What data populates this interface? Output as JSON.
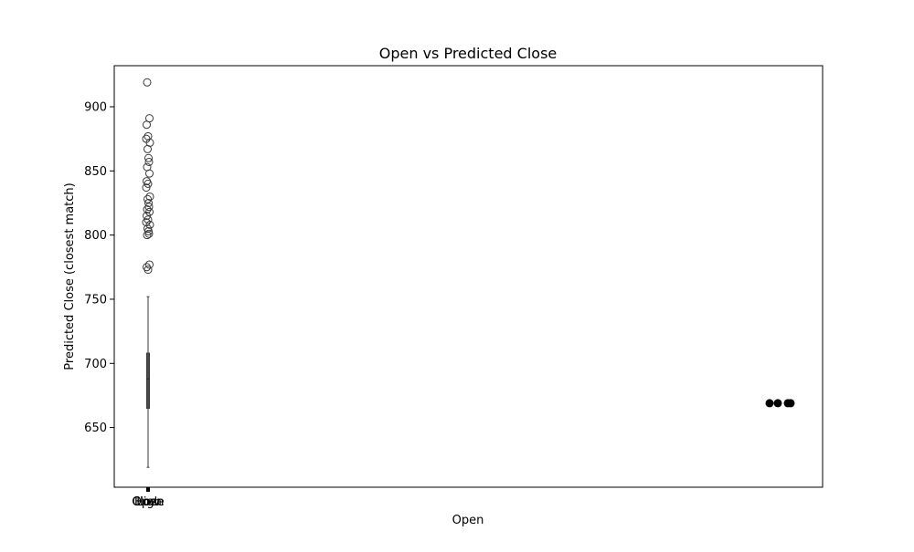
{
  "chart_data": {
    "type": "box",
    "title": "Open vs Predicted Close",
    "xlabel": "Open",
    "ylabel": "Predicted Close (closest match)",
    "ylim": [
      603.5,
      932
    ],
    "yticks": [
      650,
      700,
      750,
      800,
      850,
      900
    ],
    "x_tick_labels": [
      "Open",
      "High",
      "Low",
      "Close"
    ],
    "box": {
      "min": 619,
      "q1": 665,
      "median": 688,
      "q3": 708,
      "max": 752
    },
    "outliers": [
      773,
      775,
      777,
      800,
      801,
      803,
      805,
      808,
      810,
      812,
      815,
      818,
      820,
      822,
      825,
      828,
      830,
      837,
      840,
      842,
      848,
      853,
      857,
      860,
      867,
      872,
      875,
      877,
      886,
      891,
      919
    ],
    "scatter_points": {
      "y": 669,
      "count": 4
    },
    "colors": {
      "box_line": "#3a3a3a",
      "outlier_edge": "#3a3a3a",
      "scatter": "#000000"
    }
  }
}
